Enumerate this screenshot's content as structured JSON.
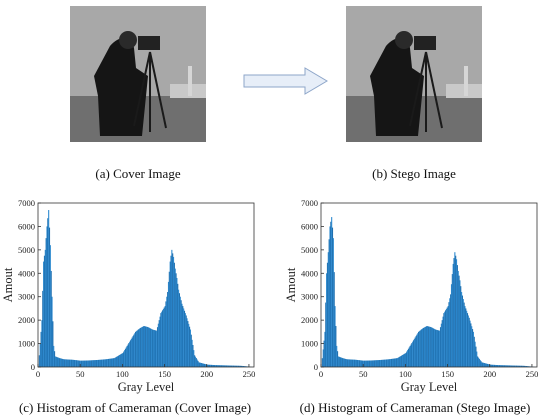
{
  "captions": {
    "cover": "(a) Cover Image",
    "stego": "(b) Stego Image",
    "hist_cover": "(c) Histogram of Cameraman (Cover Image)",
    "hist_stego": "(d) Histogram of Cameraman (Stego Image)"
  },
  "colors": {
    "bar": "#2d8ad0",
    "bar_dark": "#1f6fae",
    "axis": "#333333"
  },
  "chart_data": [
    {
      "type": "bar",
      "title": "",
      "xlabel": "Gray Level",
      "ylabel": "Amout",
      "xlim": [
        0,
        256
      ],
      "ylim": [
        0,
        7000
      ],
      "xticks": [
        0,
        50,
        100,
        150,
        200,
        250
      ],
      "yticks": [
        0,
        1000,
        2000,
        3000,
        4000,
        5000,
        6000,
        7000
      ],
      "x": [
        0,
        4,
        6,
        8,
        10,
        12,
        14,
        16,
        18,
        20,
        25,
        30,
        40,
        50,
        60,
        70,
        80,
        90,
        100,
        105,
        110,
        115,
        120,
        125,
        130,
        135,
        140,
        145,
        150,
        153,
        156,
        158,
        160,
        162,
        164,
        166,
        168,
        170,
        175,
        180,
        185,
        190,
        195,
        200,
        210,
        220,
        230,
        240,
        255
      ],
      "values": [
        0,
        2000,
        4500,
        5000,
        6000,
        6700,
        5200,
        3000,
        900,
        450,
        380,
        330,
        310,
        270,
        280,
        300,
        330,
        380,
        600,
        900,
        1200,
        1500,
        1650,
        1750,
        1700,
        1600,
        1550,
        2300,
        2600,
        3200,
        4500,
        5000,
        4700,
        4200,
        3800,
        3300,
        3000,
        2700,
        2200,
        1600,
        500,
        200,
        150,
        100,
        80,
        70,
        60,
        50,
        0
      ]
    },
    {
      "type": "bar",
      "title": "",
      "xlabel": "Gray Level",
      "ylabel": "Amout",
      "xlim": [
        0,
        256
      ],
      "ylim": [
        0,
        7000
      ],
      "xticks": [
        0,
        50,
        100,
        150,
        200,
        250
      ],
      "yticks": [
        0,
        1000,
        2000,
        3000,
        4000,
        5000,
        6000,
        7000
      ],
      "x": [
        0,
        4,
        6,
        8,
        10,
        12,
        14,
        16,
        18,
        20,
        25,
        30,
        40,
        50,
        60,
        70,
        80,
        90,
        100,
        105,
        110,
        115,
        120,
        125,
        130,
        135,
        140,
        145,
        150,
        153,
        156,
        158,
        160,
        162,
        164,
        166,
        168,
        170,
        175,
        180,
        185,
        190,
        195,
        200,
        210,
        220,
        230,
        240,
        255
      ],
      "values": [
        0,
        1500,
        4000,
        4900,
        6000,
        6400,
        5500,
        2600,
        900,
        450,
        380,
        330,
        310,
        270,
        280,
        300,
        330,
        380,
        600,
        900,
        1200,
        1500,
        1650,
        1750,
        1700,
        1600,
        1550,
        2300,
        2600,
        3100,
        4400,
        4900,
        4600,
        4100,
        3700,
        3200,
        2900,
        2600,
        2100,
        1500,
        450,
        200,
        150,
        100,
        80,
        70,
        60,
        50,
        0
      ]
    }
  ]
}
